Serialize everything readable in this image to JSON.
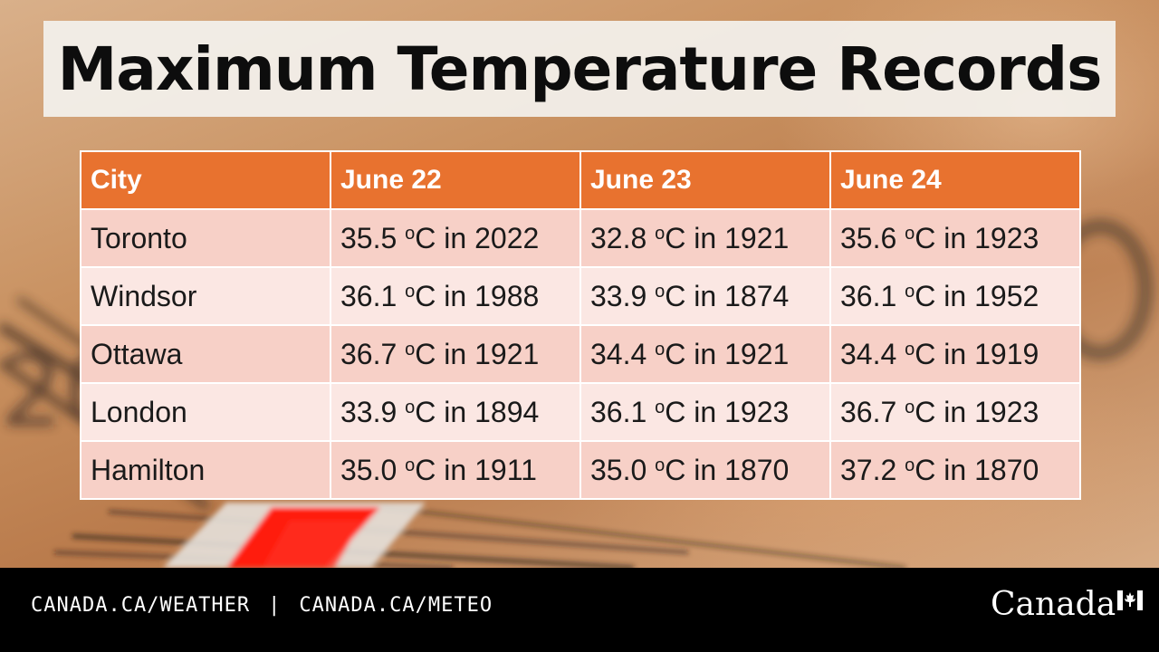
{
  "title": "Maximum Temperature Records",
  "table": {
    "headers": [
      "City",
      "June 22",
      "June 23",
      "June 24"
    ],
    "rows": [
      {
        "city": "Toronto",
        "values": [
          {
            "temp": "35.5",
            "year": "2022"
          },
          {
            "temp": "32.8",
            "year": "1921"
          },
          {
            "temp": "35.6",
            "year": "1923"
          }
        ]
      },
      {
        "city": "Windsor",
        "values": [
          {
            "temp": "36.1",
            "year": "1988"
          },
          {
            "temp": "33.9",
            "year": "1874"
          },
          {
            "temp": "36.1",
            "year": "1952"
          }
        ]
      },
      {
        "city": "Ottawa",
        "values": [
          {
            "temp": "36.7",
            "year": "1921"
          },
          {
            "temp": "34.4",
            "year": "1921"
          },
          {
            "temp": "34.4",
            "year": "1919"
          }
        ]
      },
      {
        "city": "London",
        "values": [
          {
            "temp": "33.9",
            "year": "1894"
          },
          {
            "temp": "36.1",
            "year": "1923"
          },
          {
            "temp": "36.7",
            "year": "1923"
          }
        ]
      },
      {
        "city": "Hamilton",
        "values": [
          {
            "temp": "35.0",
            "year": "1911"
          },
          {
            "temp": "35.0",
            "year": "1870"
          },
          {
            "temp": "37.2",
            "year": "1870"
          }
        ]
      }
    ],
    "degree_symbol": "o",
    "unit": "C",
    "joiner": "in"
  },
  "footer": {
    "link_en": "CANADA.CA/WEATHER",
    "separator": "|",
    "link_fr": "CANADA.CA/METEO",
    "wordmark": "Canada"
  },
  "colors": {
    "header_bg": "#e8722f",
    "row_odd_bg": "#f7d0c7",
    "row_even_bg": "#fbe7e3",
    "footer_bg": "#000000",
    "flag_red": "#ffffff"
  },
  "icons": [
    "thermometer-background-image",
    "canada-flag-icon"
  ]
}
